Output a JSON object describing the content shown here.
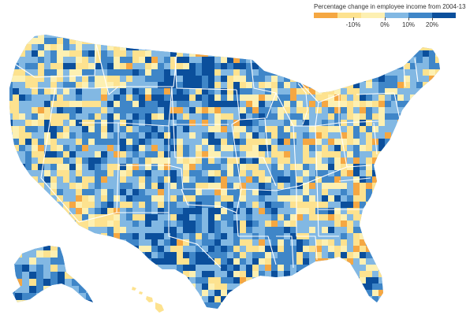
{
  "legend": {
    "title": "Percentage change in employee income from 2004-13",
    "ticks": [
      "-10%",
      "0%",
      "10%",
      "20%"
    ],
    "colors": {
      "decline_strong": "#f5a742",
      "decline": "#fde28f",
      "near_zero": "#fdf0b2",
      "growth_low": "#82b8e3",
      "growth_mid": "#3f86c8",
      "growth_high": "#0b4f9c"
    }
  },
  "map": {
    "region": "United States counties",
    "insets": [
      "Alaska",
      "Hawaii"
    ]
  }
}
